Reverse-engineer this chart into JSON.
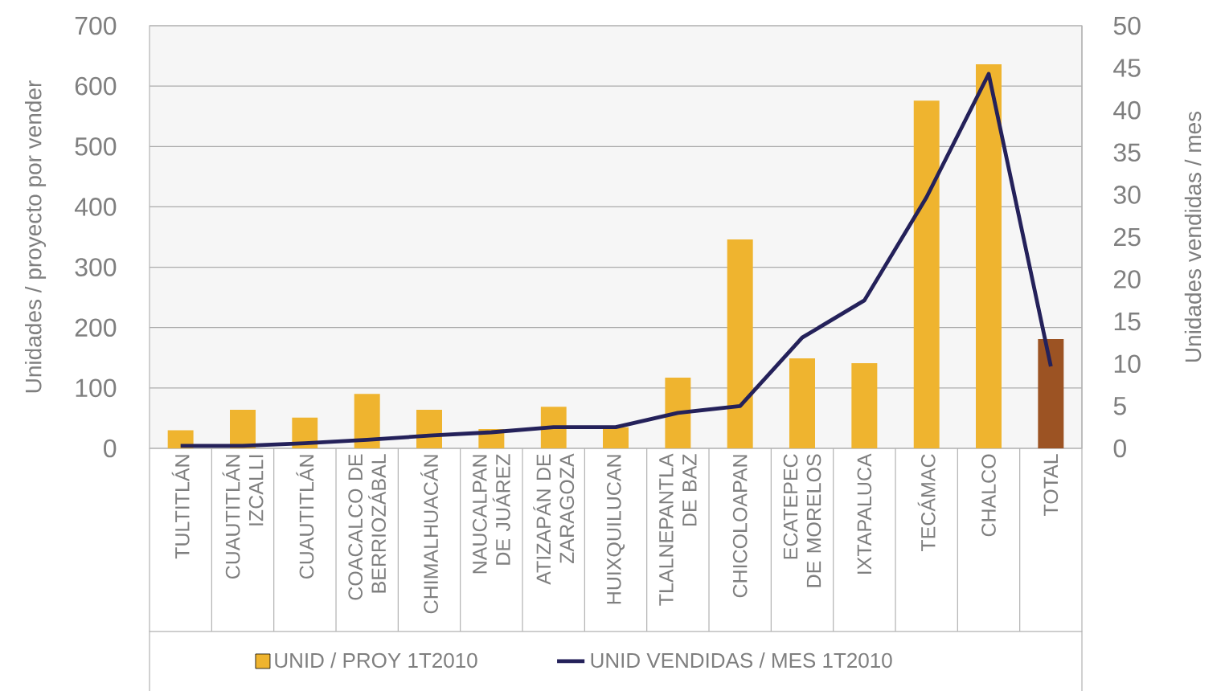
{
  "chart_data": {
    "type": "bar",
    "ylabel": "Unidades / proyecto por vender",
    "y2label": "Unidades vendidas / mes",
    "categories": [
      "TULTITLÁN",
      "CUAUTITLÁN IZCALLI",
      "CUAUTITLÁN",
      "COACALCO DE BERRIOZÁBAL",
      "CHIMALHUACÁN",
      "NAUCALPAN DE JUÁREZ",
      "ATIZAPÁN DE ZARAGOZA",
      "HUIXQUILUCAN",
      "TLALNEPANTLA DE BAZ",
      "CHICOLOAPAN",
      "ECATEPEC DE MORELOS",
      "IXTAPALUCA",
      "TECÁMAC",
      "CHALCO",
      "TOTAL"
    ],
    "series": [
      {
        "name": "UNID / PROY 1T2010",
        "colors": [
          "#efb42f",
          "#efb42f",
          "#efb42f",
          "#efb42f",
          "#efb42f",
          "#efb42f",
          "#efb42f",
          "#efb42f",
          "#efb42f",
          "#efb42f",
          "#efb42f",
          "#efb42f",
          "#efb42f",
          "#efb42f",
          "#9c5323"
        ],
        "values": [
          30,
          64,
          51,
          90,
          64,
          32,
          69,
          35,
          117,
          346,
          149,
          141,
          576,
          636,
          181
        ]
      },
      {
        "name": "UNID VENDIDAS / MES 1T2010",
        "type": "line",
        "axis": "y2",
        "color": "#24215a",
        "values": [
          0.3,
          0.3,
          0.6,
          1.0,
          1.5,
          1.9,
          2.5,
          2.5,
          4.2,
          5.0,
          13.1,
          17.5,
          29.7,
          44.3,
          9.7
        ]
      }
    ],
    "ylim": [
      0,
      700
    ],
    "yticks": [
      0,
      100,
      200,
      300,
      400,
      500,
      600,
      700
    ],
    "y2lim": [
      0,
      50
    ],
    "y2ticks": [
      0,
      5,
      10,
      15,
      20,
      25,
      30,
      35,
      40,
      45,
      50
    ],
    "grid": "y",
    "legend": "bottom"
  }
}
